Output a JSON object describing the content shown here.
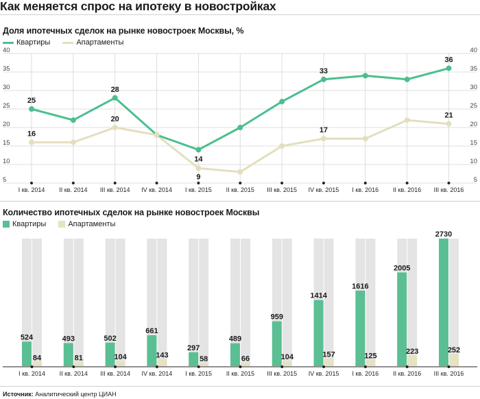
{
  "title": "Как меняется спрос на ипотеку в новостройках",
  "colors": {
    "apartments_line": "#4bbf8e",
    "apartments_bar": "#5bbf94",
    "apartamenty_line": "#e3dfbc",
    "apartamenty_bar": "#e6e2c2",
    "background_bar": "#e4e4e4",
    "grid": "#d5d5d5"
  },
  "source": {
    "label": "Источник:",
    "text": "Аналитический центр ЦИАН"
  },
  "chart_data": [
    {
      "type": "line",
      "title": "Доля ипотечных сделок на рынке новостроек Москвы, %",
      "categories": [
        "I кв. 2014",
        "II кв. 2014",
        "III кв. 2014",
        "IV кв. 2014",
        "I кв. 2015",
        "II кв. 2015",
        "III кв. 2015",
        "IV кв. 2015",
        "I кв. 2016",
        "II кв. 2016",
        "III кв. 2016"
      ],
      "series": [
        {
          "name": "Квартиры",
          "values": [
            25,
            22,
            28,
            18,
            14,
            20,
            27,
            33,
            34,
            33,
            36
          ],
          "labeled_indices": [
            0,
            2,
            4,
            7,
            10
          ]
        },
        {
          "name": "Апартаменты",
          "values": [
            16,
            16,
            20,
            18,
            9,
            8,
            15,
            17,
            17,
            22,
            21
          ],
          "labeled_indices": [
            0,
            2,
            4,
            7,
            10
          ]
        }
      ],
      "ylim": [
        5,
        40
      ],
      "yticks": [
        5,
        10,
        15,
        20,
        25,
        30,
        35,
        40
      ],
      "grid": true,
      "legend_position": "top-left"
    },
    {
      "type": "bar",
      "title": "Количество ипотечных сделок на рынке новостроек Москвы",
      "categories": [
        "I кв. 2014",
        "II кв. 2014",
        "III кв. 2014",
        "IV кв. 2014",
        "I кв. 2015",
        "II кв. 2015",
        "III кв. 2015",
        "IV кв. 2015",
        "I кв. 2016",
        "II кв. 2016",
        "III кв. 2016"
      ],
      "series": [
        {
          "name": "Квартиры",
          "values": [
            524,
            493,
            502,
            661,
            297,
            489,
            959,
            1414,
            1616,
            2005,
            2730
          ]
        },
        {
          "name": "Апартаменты",
          "values": [
            84,
            81,
            104,
            143,
            58,
            66,
            104,
            157,
            125,
            223,
            252
          ]
        }
      ],
      "ylim": [
        0,
        2730
      ],
      "legend_position": "top-left"
    }
  ]
}
